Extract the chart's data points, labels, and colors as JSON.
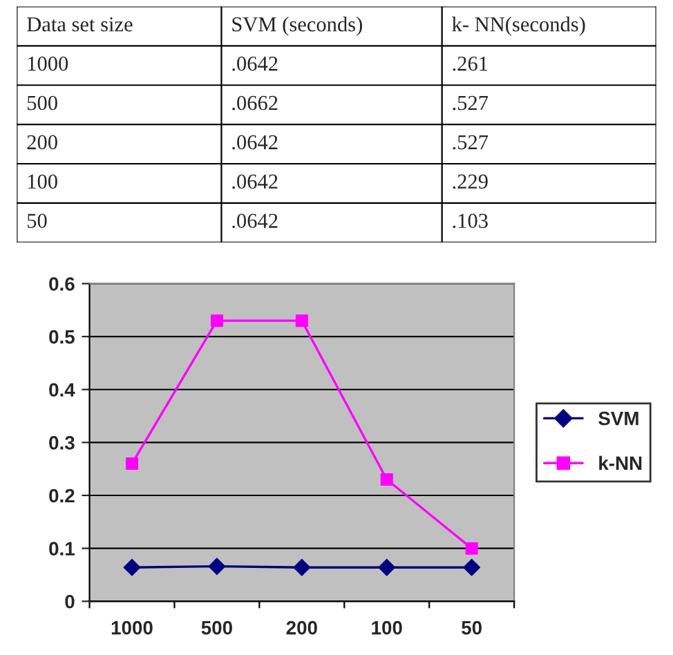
{
  "chart_data": [
    {
      "type": "other",
      "categories": [
        "Data set size",
        "SVM (seconds)",
        "k- NN(seconds)"
      ],
      "annotations": [
        "1000",
        ".0642",
        ".261",
        "500",
        ".0662",
        ".527",
        "200",
        ".0642",
        ".527",
        "100",
        ".0642",
        ".229",
        "50",
        ".0642",
        ".103"
      ]
    },
    {
      "type": "line",
      "categories": [
        "1000",
        "500",
        "200",
        "100",
        "50"
      ],
      "series": [
        {
          "name": "SVM",
          "color": "#000080",
          "marker": "diamond",
          "values": [
            0.064,
            0.066,
            0.064,
            0.064,
            0.064
          ]
        },
        {
          "name": "k-NN",
          "color": "#ff00ff",
          "marker": "square",
          "values": [
            0.26,
            0.53,
            0.53,
            0.23,
            0.1
          ]
        }
      ],
      "ylim": [
        0,
        0.6
      ],
      "yticks": [
        0,
        0.1,
        0.2,
        0.3,
        0.4,
        0.5,
        0.6
      ],
      "grid": "y",
      "legend": "right",
      "line_style": "solid"
    }
  ]
}
